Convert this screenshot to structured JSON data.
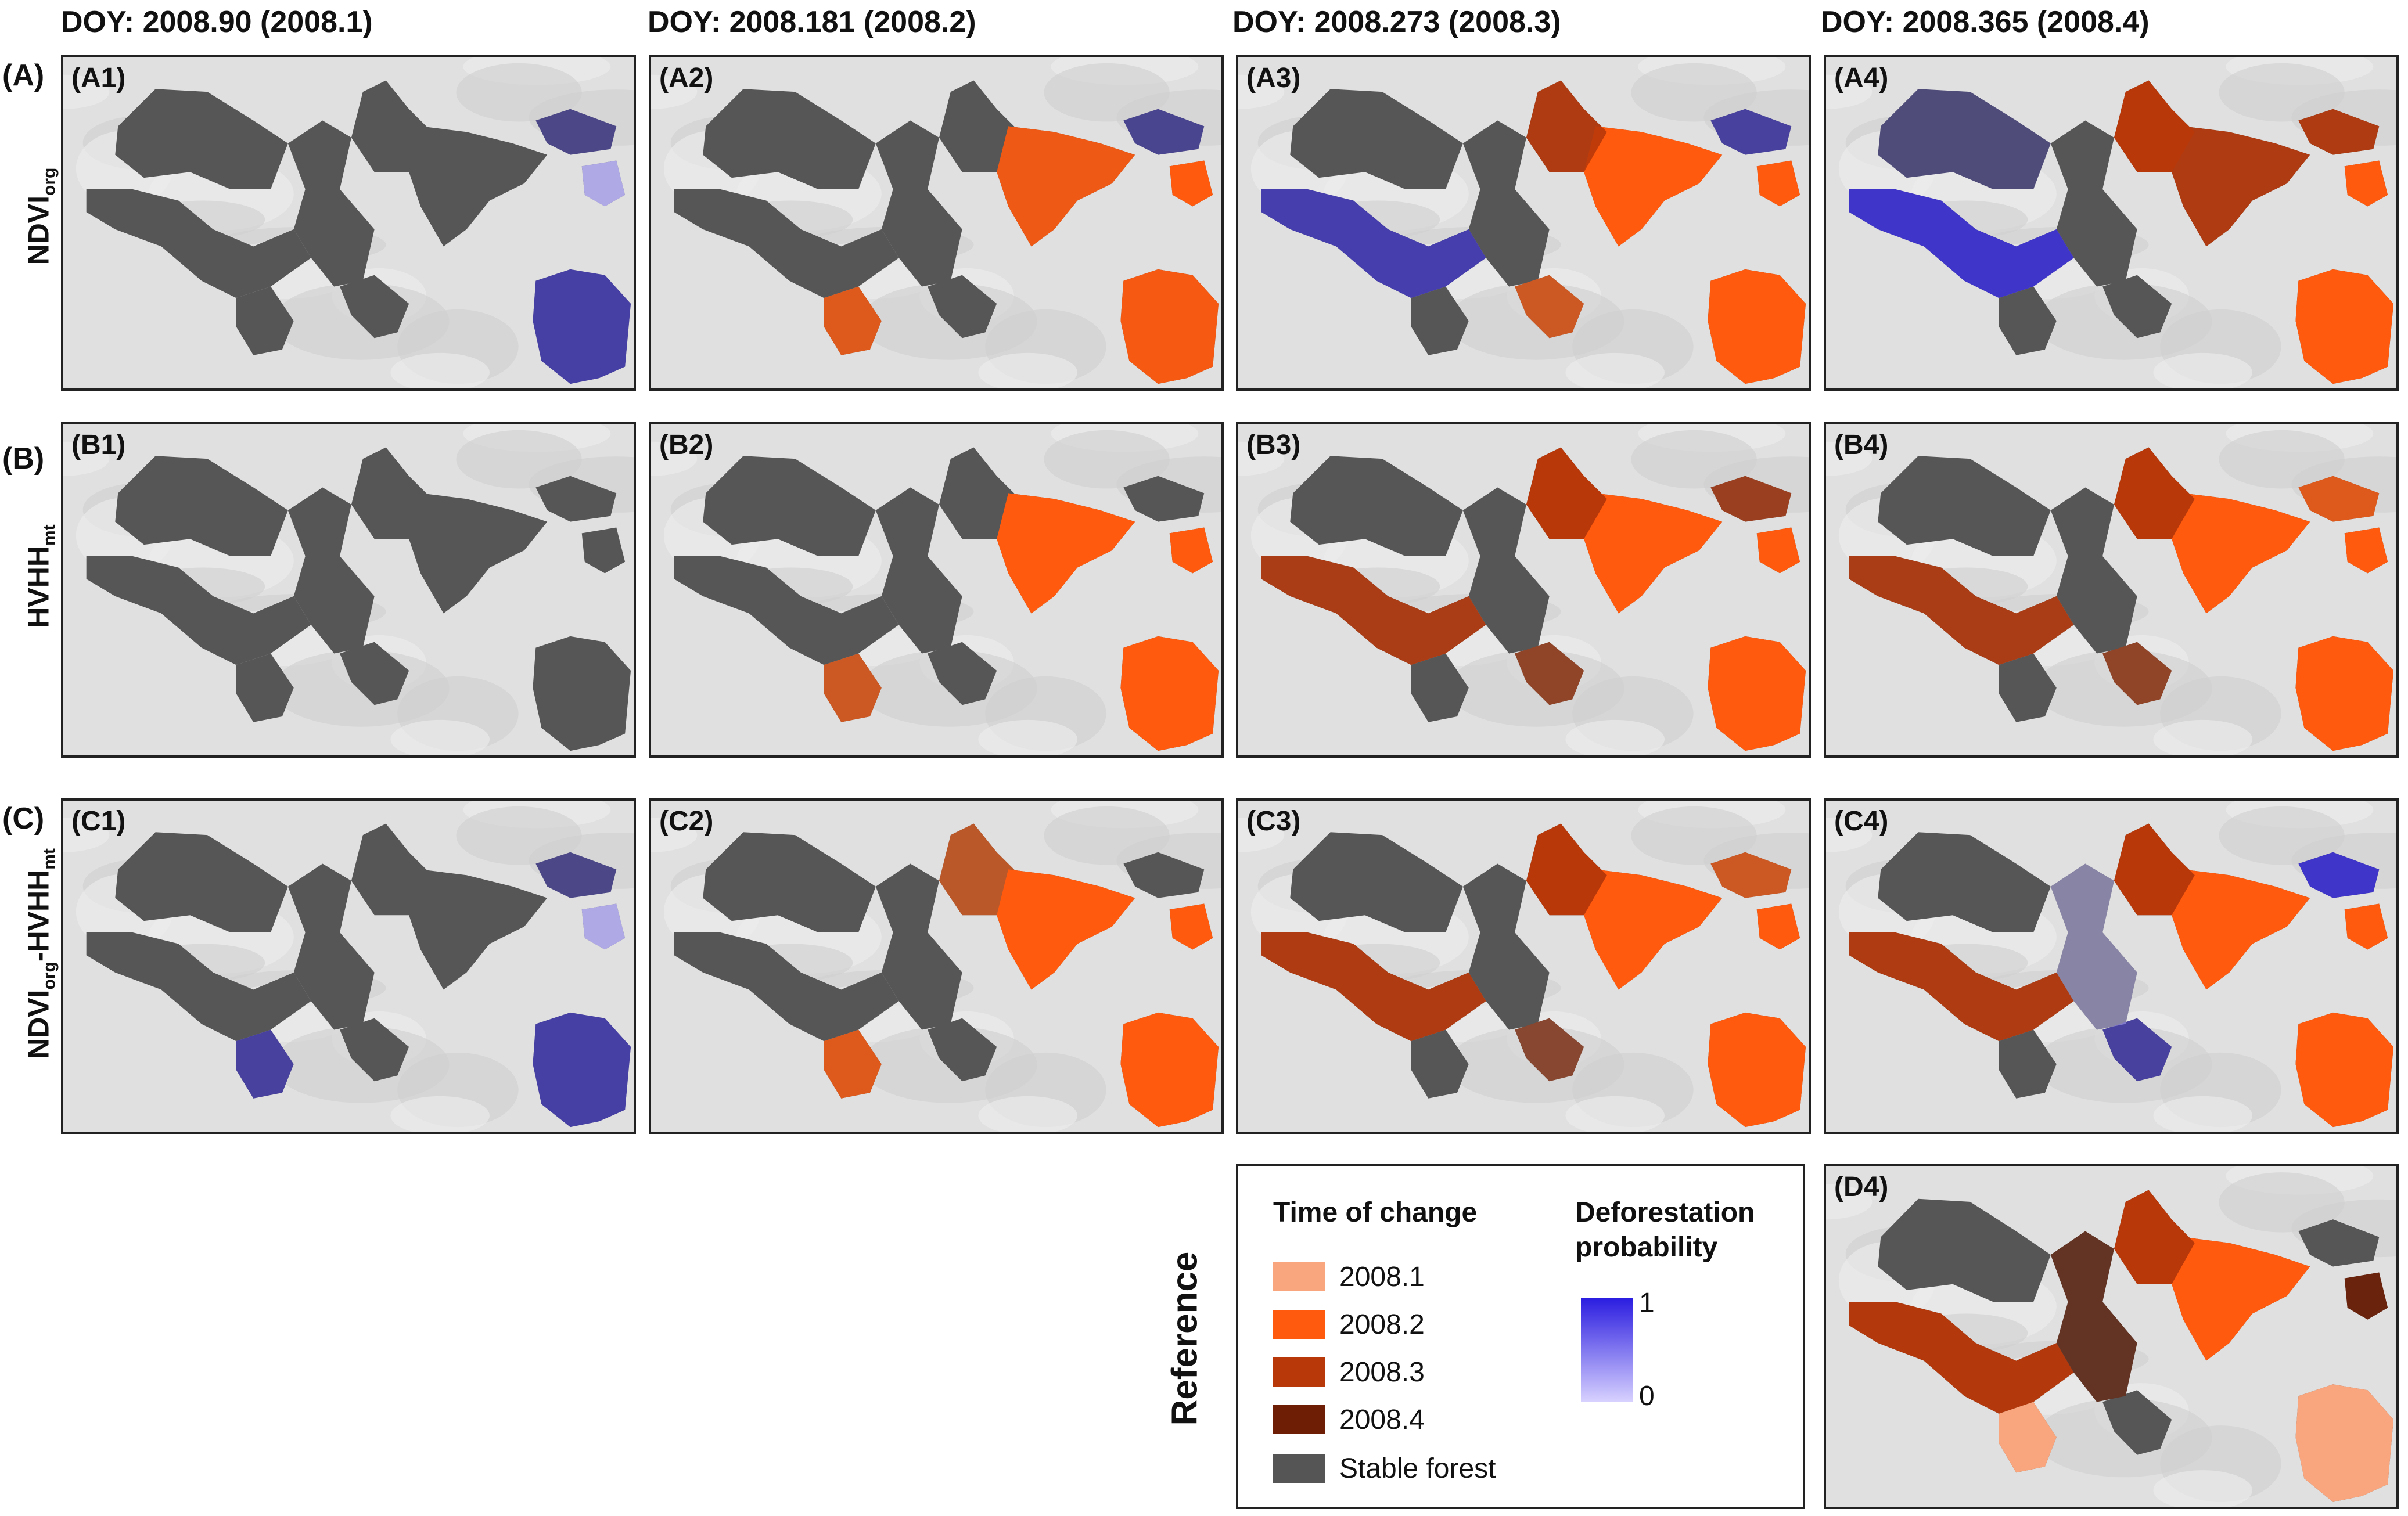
{
  "columns": [
    "DOY: 2008.90 (2008.1)",
    "DOY: 2008.181 (2008.2)",
    "DOY: 2008.273 (2008.3)",
    "DOY: 2008.365 (2008.4)"
  ],
  "rows": {
    "A": {
      "letter": "(A)",
      "title_main": "NDVI",
      "title_sub": "org",
      "title_rest": "",
      "title_sub2": ""
    },
    "B": {
      "letter": "(B)",
      "title_main": "HVHH",
      "title_sub": "mt",
      "title_rest": "",
      "title_sub2": ""
    },
    "C": {
      "letter": "(C)",
      "title_main": "NDVI",
      "title_sub": "org",
      "title_rest": "-HVHH",
      "title_sub2": "mt"
    }
  },
  "panels": {
    "A1": "(A1)",
    "A2": "(A2)",
    "A3": "(A3)",
    "A4": "(A4)",
    "B1": "(B1)",
    "B2": "(B2)",
    "B3": "(B3)",
    "B4": "(B4)",
    "C1": "(C1)",
    "C2": "(C2)",
    "C3": "(C3)",
    "C4": "(C4)",
    "D4": "(D4)"
  },
  "reference_label": "Reference",
  "legend": {
    "time_title": "Time of change",
    "prob_title_line1": "Deforestation",
    "prob_title_line2": "probability",
    "items": [
      {
        "label": "2008.1",
        "color": "#f9a57d"
      },
      {
        "label": "2008.2",
        "color": "#ff5a0e"
      },
      {
        "label": "2008.3",
        "color": "#b8380a"
      },
      {
        "label": "2008.4",
        "color": "#6d1e04"
      },
      {
        "label": "Stable forest",
        "color": "#555555"
      }
    ],
    "prob_max": "1",
    "prob_min": "0",
    "prob_high_color": "#2a1ce0",
    "prob_low_color": "#d8d2ff"
  }
}
